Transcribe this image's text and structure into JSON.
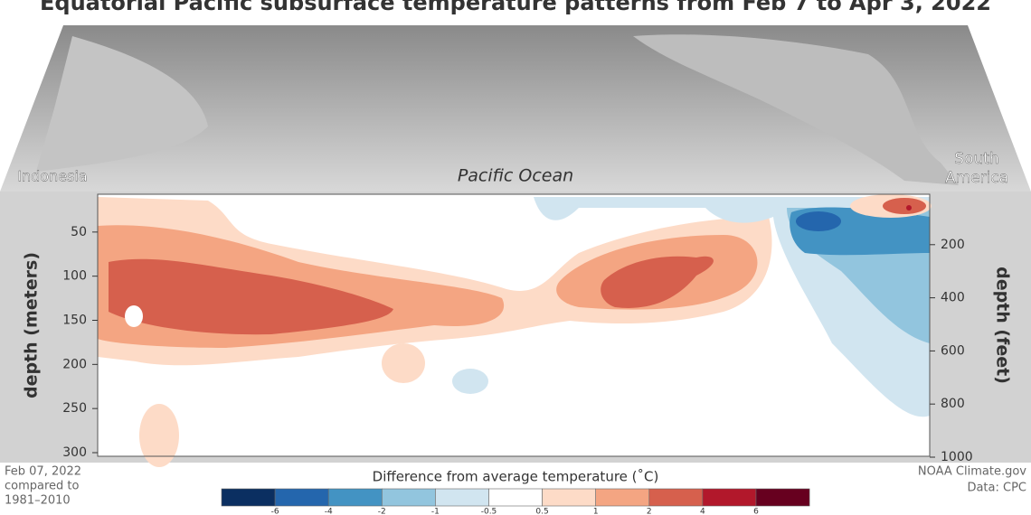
{
  "title": "Equatorial Pacific subsurface temperature patterns from Feb 7 to Apr 3, 2022",
  "map_labels": {
    "west": "Indonesia",
    "center": "Pacific Ocean",
    "east_line1": "South",
    "east_line2": "America"
  },
  "left_axis": {
    "label": "depth (meters)",
    "ylim": [
      0,
      300
    ],
    "yticks": [
      50,
      100,
      150,
      200,
      250,
      300
    ]
  },
  "right_axis": {
    "label": "depth (feet)",
    "ylim": [
      0,
      1000
    ],
    "yticks": [
      200,
      400,
      600,
      800,
      1000
    ]
  },
  "colorbar": {
    "title": "Difference from average temperature (˚C)",
    "colors": [
      "#0b2f61",
      "#2466ad",
      "#4393c3",
      "#92c5de",
      "#d1e5f0",
      "#ffffff",
      "#fddbc7",
      "#f4a582",
      "#d6604d",
      "#b2182b",
      "#67001f"
    ],
    "ticks": [
      -6,
      -4,
      -2,
      -1,
      -0.5,
      0.5,
      1,
      2,
      4,
      6
    ]
  },
  "date_note": [
    "Feb 07, 2022",
    "compared to",
    "1981–2010"
  ],
  "credit": [
    "NOAA Climate.gov",
    "Data: CPC"
  ]
}
